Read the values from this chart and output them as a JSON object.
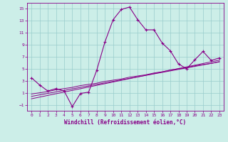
{
  "xlabel": "Windchill (Refroidissement éolien,°C)",
  "x_values": [
    0,
    1,
    2,
    3,
    4,
    5,
    6,
    7,
    8,
    9,
    10,
    11,
    12,
    13,
    14,
    15,
    16,
    17,
    18,
    19,
    20,
    21,
    22,
    23
  ],
  "y_main": [
    3.5,
    2.3,
    1.3,
    1.7,
    1.3,
    -1.3,
    0.9,
    1.1,
    4.8,
    9.5,
    13.2,
    14.9,
    15.3,
    13.2,
    11.5,
    11.5,
    9.3,
    8.0,
    5.8,
    5.0,
    6.5,
    7.9,
    6.4,
    6.8
  ],
  "y_reg1": [
    0.8,
    1.0,
    1.2,
    1.5,
    1.7,
    1.9,
    2.2,
    2.4,
    2.6,
    2.9,
    3.1,
    3.3,
    3.6,
    3.8,
    4.0,
    4.3,
    4.5,
    4.8,
    5.0,
    5.2,
    5.5,
    5.7,
    5.9,
    6.2
  ],
  "y_reg2": [
    0.4,
    0.65,
    0.9,
    1.15,
    1.4,
    1.65,
    1.9,
    2.15,
    2.4,
    2.65,
    2.9,
    3.15,
    3.4,
    3.65,
    3.9,
    4.15,
    4.4,
    4.65,
    4.9,
    5.15,
    5.4,
    5.65,
    5.9,
    6.15
  ],
  "y_reg3": [
    0.0,
    0.28,
    0.56,
    0.84,
    1.12,
    1.4,
    1.68,
    1.96,
    2.24,
    2.52,
    2.8,
    3.08,
    3.36,
    3.64,
    3.92,
    4.2,
    4.48,
    4.76,
    5.04,
    5.32,
    5.6,
    5.88,
    6.16,
    6.44
  ],
  "line_color": "#880088",
  "bg_color": "#cceee8",
  "grid_color": "#99cccc",
  "ylim": [
    -2,
    16
  ],
  "xlim": [
    -0.5,
    23.5
  ],
  "yticks": [
    -1,
    1,
    3,
    5,
    7,
    9,
    11,
    13,
    15
  ],
  "xticks": [
    0,
    1,
    2,
    3,
    4,
    5,
    6,
    7,
    8,
    9,
    10,
    11,
    12,
    13,
    14,
    15,
    16,
    17,
    18,
    19,
    20,
    21,
    22,
    23
  ]
}
